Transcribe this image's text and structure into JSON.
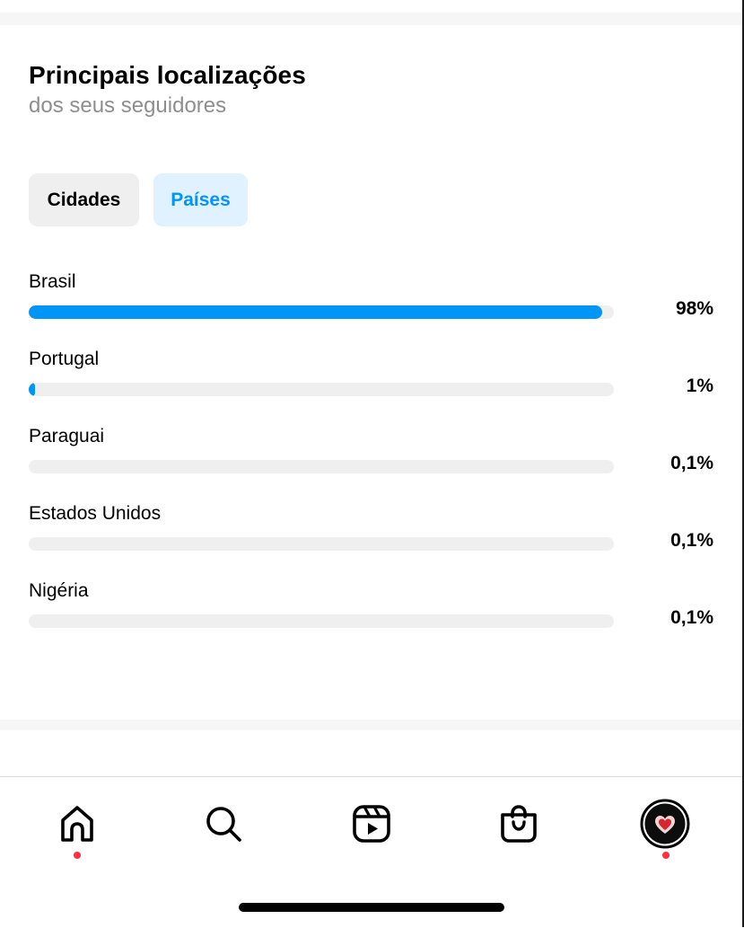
{
  "section": {
    "title": "Principais localizações",
    "subtitle": "dos seus seguidores"
  },
  "tabs": [
    {
      "label": "Cidades",
      "selected": false
    },
    {
      "label": "Países",
      "selected": true
    }
  ],
  "locations": [
    {
      "name": "Brasil",
      "value_label": "98%",
      "fraction": 0.98
    },
    {
      "name": "Portugal",
      "value_label": "1%",
      "fraction": 0.01
    },
    {
      "name": "Paraguai",
      "value_label": "0,1%",
      "fraction": 0.001
    },
    {
      "name": "Estados Unidos",
      "value_label": "0,1%",
      "fraction": 0.001
    },
    {
      "name": "Nigéria",
      "value_label": "0,1%",
      "fraction": 0.001
    }
  ],
  "nav": {
    "items": [
      {
        "icon": "home-icon",
        "active": true,
        "notification_dot": true
      },
      {
        "icon": "search-icon",
        "active": false,
        "notification_dot": false
      },
      {
        "icon": "reels-icon",
        "active": false,
        "notification_dot": false
      },
      {
        "icon": "shop-icon",
        "active": false,
        "notification_dot": false
      },
      {
        "icon": "profile-avatar",
        "active": false,
        "notification_dot": true
      }
    ]
  },
  "colors": {
    "accent": "#0095f6",
    "accent_bg": "#e0f1ff",
    "track": "#efefef",
    "notification": "#ff3040"
  }
}
